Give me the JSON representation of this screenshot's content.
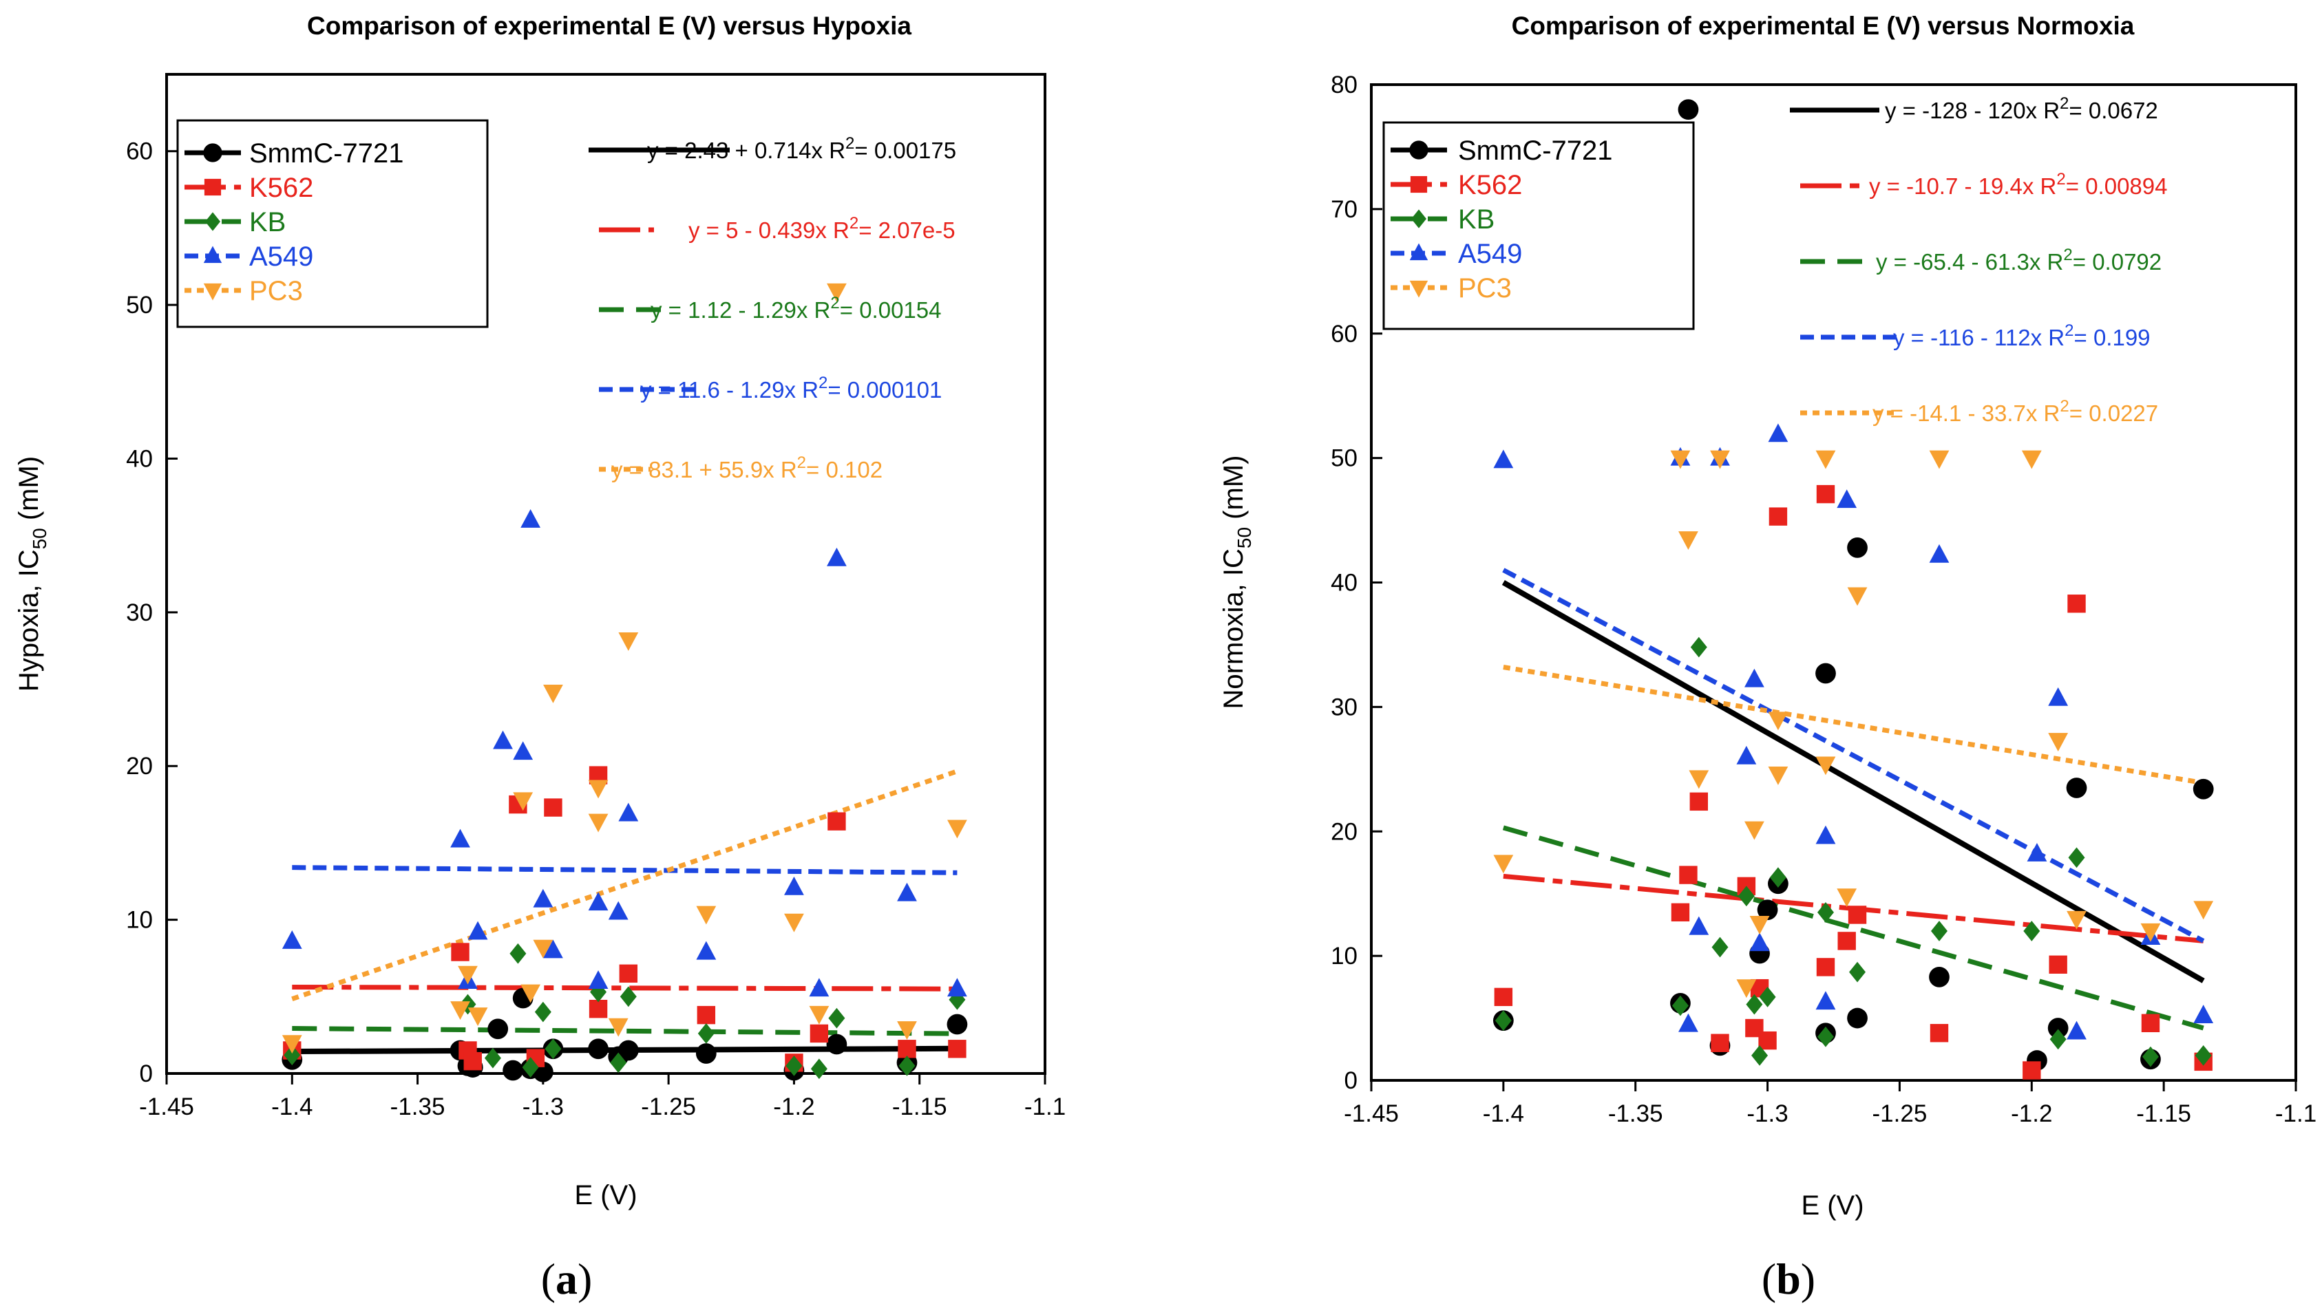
{
  "colors": {
    "SmmC-7721": "#000000",
    "K562": "#e8231c",
    "KB": "#1b7a1b",
    "A549": "#1c46e0",
    "PC3": "#f7a030"
  },
  "chart_data": [
    {
      "type": "scatter",
      "panel": "a",
      "panel_label": "a",
      "title": "Comparison of experimental E (V) versus Hypoxia",
      "xlabel": "E (V)",
      "ylabel": "Hypoxia, IC50 (mM)",
      "ylabel_main": "Hypoxia, IC",
      "ylabel_sub": "50",
      "ylabel_unit": " (mM)",
      "xlim": [
        -1.45,
        -1.1
      ],
      "ylim": [
        0,
        65
      ],
      "xticks": [
        -1.45,
        -1.4,
        -1.35,
        -1.3,
        -1.25,
        -1.2,
        -1.15,
        -1.1
      ],
      "xtick_labels": [
        "-1.45",
        "-1.4",
        "-1.35",
        "-1.3",
        "-1.25",
        "-1.2",
        "-1.15",
        "-1.1"
      ],
      "yticks": [
        0,
        10,
        20,
        30,
        40,
        50,
        60
      ],
      "ytick_labels": [
        "0",
        "10",
        "20",
        "30",
        "40",
        "50",
        "60"
      ],
      "legend": [
        "SmmC-7721",
        "K562",
        "KB",
        "A549",
        "PC3"
      ],
      "series": [
        {
          "name": "SmmC-7721",
          "marker": "circle",
          "dash": "solid",
          "fit": {
            "x": [
              -1.4,
              -1.135
            ],
            "y": [
              1.43,
              1.62
            ]
          },
          "equation": {
            "pre": "y = 2.43 + 0.714x   R",
            "sup": "2",
            "post": "= 0.00175"
          },
          "points": [
            [
              -1.4,
              0.9
            ],
            [
              -1.333,
              1.5
            ],
            [
              -1.33,
              0.5
            ],
            [
              -1.328,
              0.4
            ],
            [
              -1.318,
              2.9
            ],
            [
              -1.312,
              0.2
            ],
            [
              -1.308,
              4.9
            ],
            [
              -1.305,
              0.3
            ],
            [
              -1.3,
              0.1
            ],
            [
              -1.296,
              1.6
            ],
            [
              -1.278,
              1.6
            ],
            [
              -1.27,
              1.1
            ],
            [
              -1.266,
              1.5
            ],
            [
              -1.235,
              1.3
            ],
            [
              -1.2,
              0.2
            ],
            [
              -1.183,
              1.9
            ],
            [
              -1.155,
              0.7
            ],
            [
              -1.135,
              3.2
            ]
          ]
        },
        {
          "name": "K562",
          "marker": "square",
          "dash": "longdash",
          "fit": {
            "x": [
              -1.4,
              -1.135
            ],
            "y": [
              5.62,
              5.5
            ]
          },
          "equation": {
            "pre": "y = 5 - 0.439x   R",
            "sup": "2",
            "post": "= 2.07e-5"
          },
          "points": [
            [
              -1.4,
              1.5
            ],
            [
              -1.333,
              7.9
            ],
            [
              -1.33,
              1.5
            ],
            [
              -1.328,
              0.8
            ],
            [
              -1.31,
              17.5
            ],
            [
              -1.303,
              1.0
            ],
            [
              -1.296,
              17.3
            ],
            [
              -1.278,
              19.4
            ],
            [
              -1.278,
              4.2
            ],
            [
              -1.266,
              6.5
            ],
            [
              -1.235,
              3.8
            ],
            [
              -1.2,
              0.7
            ],
            [
              -1.19,
              2.6
            ],
            [
              -1.183,
              16.4
            ],
            [
              -1.155,
              1.6
            ],
            [
              -1.135,
              1.6
            ]
          ]
        },
        {
          "name": "KB",
          "marker": "diamond",
          "dash": "dash",
          "fit": {
            "x": [
              -1.4,
              -1.135
            ],
            "y": [
              2.93,
              2.59
            ]
          },
          "equation": {
            "pre": "y = 1.12 - 1.29x   R",
            "sup": "2",
            "post": "= 0.00154"
          },
          "points": [
            [
              -1.4,
              1.2
            ],
            [
              -1.33,
              4.5
            ],
            [
              -1.32,
              1.0
            ],
            [
              -1.31,
              7.8
            ],
            [
              -1.305,
              0.4
            ],
            [
              -1.3,
              4.0
            ],
            [
              -1.296,
              1.6
            ],
            [
              -1.278,
              5.3
            ],
            [
              -1.27,
              0.7
            ],
            [
              -1.266,
              5.0
            ],
            [
              -1.235,
              2.6
            ],
            [
              -1.2,
              0.5
            ],
            [
              -1.19,
              0.3
            ],
            [
              -1.183,
              3.6
            ],
            [
              -1.155,
              0.5
            ],
            [
              -1.135,
              4.8
            ]
          ]
        },
        {
          "name": "A549",
          "marker": "triangle-up",
          "dash": "shortdash",
          "fit": {
            "x": [
              -1.4,
              -1.135
            ],
            "y": [
              13.4,
              13.06
            ]
          },
          "equation": {
            "pre": "y = 11.6 - 1.29x   R",
            "sup": "2",
            "post": "= 0.000101"
          },
          "points": [
            [
              -1.4,
              8.6
            ],
            [
              -1.333,
              15.2
            ],
            [
              -1.33,
              6.0
            ],
            [
              -1.326,
              9.2
            ],
            [
              -1.316,
              21.6
            ],
            [
              -1.308,
              20.9
            ],
            [
              -1.305,
              36.0
            ],
            [
              -1.3,
              11.3
            ],
            [
              -1.296,
              8.0
            ],
            [
              -1.278,
              11.1
            ],
            [
              -1.278,
              6.0
            ],
            [
              -1.27,
              10.5
            ],
            [
              -1.266,
              16.9
            ],
            [
              -1.235,
              7.9
            ],
            [
              -1.2,
              12.1
            ],
            [
              -1.19,
              5.5
            ],
            [
              -1.183,
              33.5
            ],
            [
              -1.155,
              11.7
            ],
            [
              -1.135,
              5.5
            ]
          ]
        },
        {
          "name": "PC3",
          "marker": "triangle-down",
          "dash": "dot",
          "fit": {
            "x": [
              -1.4,
              -1.135
            ],
            "y": [
              4.85,
              19.66
            ]
          },
          "equation": {
            "pre": "y = 83.1 + 55.9x   R",
            "sup": "2",
            "post": "= 0.102"
          },
          "points": [
            [
              -1.4,
              2.0
            ],
            [
              -1.333,
              4.2
            ],
            [
              -1.33,
              6.5
            ],
            [
              -1.326,
              3.8
            ],
            [
              -1.308,
              17.8
            ],
            [
              -1.305,
              5.3
            ],
            [
              -1.3,
              8.2
            ],
            [
              -1.296,
              24.8
            ],
            [
              -1.278,
              18.6
            ],
            [
              -1.278,
              16.4
            ],
            [
              -1.27,
              3.1
            ],
            [
              -1.266,
              28.2
            ],
            [
              -1.235,
              10.4
            ],
            [
              -1.2,
              9.9
            ],
            [
              -1.19,
              3.9
            ],
            [
              -1.183,
              50.9
            ],
            [
              -1.155,
              2.9
            ],
            [
              -1.135,
              16.0
            ]
          ]
        }
      ]
    },
    {
      "type": "scatter",
      "panel": "b",
      "panel_label": "b",
      "title": "Comparison of experimental E (V) versus Normoxia",
      "xlabel": "E (V)",
      "ylabel": "Normoxia, IC50 (mM)",
      "ylabel_main": "Normoxia, IC",
      "ylabel_sub": "50",
      "ylabel_unit": " (mM)",
      "xlim": [
        -1.45,
        -1.1
      ],
      "ylim": [
        0,
        80
      ],
      "xticks": [
        -1.45,
        -1.4,
        -1.35,
        -1.3,
        -1.25,
        -1.2,
        -1.15,
        -1.1
      ],
      "xtick_labels": [
        "-1.45",
        "-1.4",
        "-1.35",
        "-1.3",
        "-1.25",
        "-1.2",
        "-1.15",
        "-1.1"
      ],
      "yticks": [
        0,
        10,
        20,
        30,
        40,
        50,
        60,
        70,
        80
      ],
      "ytick_labels": [
        "0",
        "10",
        "20",
        "30",
        "40",
        "50",
        "60",
        "70",
        "80"
      ],
      "legend": [
        "SmmC-7721",
        "K562",
        "KB",
        "A549",
        "PC3"
      ],
      "series": [
        {
          "name": "SmmC-7721",
          "marker": "circle",
          "dash": "solid",
          "fit": {
            "x": [
              -1.4,
              -1.135
            ],
            "y": [
              40.0,
              8.0
            ]
          },
          "equation": {
            "pre": "y = -128 - 120x   R",
            "sup": "2",
            "post": "= 0.0672"
          },
          "points": [
            [
              -1.4,
              4.8
            ],
            [
              -1.333,
              6.2
            ],
            [
              -1.33,
              78.0
            ],
            [
              -1.318,
              2.8
            ],
            [
              -1.303,
              10.2
            ],
            [
              -1.3,
              13.7
            ],
            [
              -1.296,
              15.8
            ],
            [
              -1.278,
              32.7
            ],
            [
              -1.278,
              3.8
            ],
            [
              -1.266,
              5.0
            ],
            [
              -1.266,
              42.8
            ],
            [
              -1.235,
              8.3
            ],
            [
              -1.198,
              1.6
            ],
            [
              -1.19,
              4.2
            ],
            [
              -1.183,
              23.5
            ],
            [
              -1.155,
              1.7
            ],
            [
              -1.135,
              23.4
            ]
          ]
        },
        {
          "name": "K562",
          "marker": "square",
          "dash": "longdash",
          "fit": {
            "x": [
              -1.4,
              -1.135
            ],
            "y": [
              16.4,
              11.2
            ]
          },
          "equation": {
            "pre": "y = -10.7 - 19.4x   R",
            "sup": "2",
            "post": "= 0.00894"
          },
          "points": [
            [
              -1.4,
              6.7
            ],
            [
              -1.333,
              13.5
            ],
            [
              -1.33,
              16.5
            ],
            [
              -1.326,
              22.4
            ],
            [
              -1.318,
              3.0
            ],
            [
              -1.308,
              15.6
            ],
            [
              -1.305,
              4.2
            ],
            [
              -1.303,
              7.4
            ],
            [
              -1.3,
              3.2
            ],
            [
              -1.296,
              45.3
            ],
            [
              -1.278,
              47.1
            ],
            [
              -1.278,
              9.1
            ],
            [
              -1.27,
              11.2
            ],
            [
              -1.266,
              13.3
            ],
            [
              -1.235,
              3.8
            ],
            [
              -1.2,
              0.8
            ],
            [
              -1.19,
              9.3
            ],
            [
              -1.183,
              38.3
            ],
            [
              -1.155,
              4.6
            ],
            [
              -1.135,
              1.5
            ]
          ]
        },
        {
          "name": "KB",
          "marker": "diamond",
          "dash": "dash",
          "fit": {
            "x": [
              -1.4,
              -1.135
            ],
            "y": [
              20.3,
              4.2
            ]
          },
          "equation": {
            "pre": "y = -65.4 - 61.3x   R",
            "sup": "2",
            "post": "= 0.0792"
          },
          "points": [
            [
              -1.4,
              4.8
            ],
            [
              -1.333,
              6.0
            ],
            [
              -1.326,
              34.8
            ],
            [
              -1.318,
              10.7
            ],
            [
              -1.308,
              14.8
            ],
            [
              -1.305,
              6.1
            ],
            [
              -1.303,
              2.0
            ],
            [
              -1.3,
              6.7
            ],
            [
              -1.296,
              16.3
            ],
            [
              -1.278,
              3.5
            ],
            [
              -1.278,
              13.5
            ],
            [
              -1.266,
              8.7
            ],
            [
              -1.235,
              12.0
            ],
            [
              -1.2,
              12.0
            ],
            [
              -1.19,
              3.3
            ],
            [
              -1.183,
              17.9
            ],
            [
              -1.155,
              1.9
            ],
            [
              -1.135,
              2.0
            ]
          ]
        },
        {
          "name": "A549",
          "marker": "triangle-up",
          "dash": "shortdash",
          "fit": {
            "x": [
              -1.4,
              -1.135
            ],
            "y": [
              41.0,
              11.2
            ]
          },
          "equation": {
            "pre": "y = -116 - 112x   R",
            "sup": "2",
            "post": "= 0.199"
          },
          "points": [
            [
              -1.4,
              49.8
            ],
            [
              -1.333,
              50.0
            ],
            [
              -1.33,
              4.5
            ],
            [
              -1.326,
              12.3
            ],
            [
              -1.318,
              50.0
            ],
            [
              -1.308,
              26.0
            ],
            [
              -1.305,
              32.2
            ],
            [
              -1.303,
              11.0
            ],
            [
              -1.296,
              51.9
            ],
            [
              -1.278,
              19.6
            ],
            [
              -1.278,
              6.3
            ],
            [
              -1.27,
              46.6
            ],
            [
              -1.235,
              42.2
            ],
            [
              -1.198,
              18.2
            ],
            [
              -1.19,
              30.7
            ],
            [
              -1.183,
              3.9
            ],
            [
              -1.155,
              11.5
            ],
            [
              -1.135,
              5.2
            ]
          ]
        },
        {
          "name": "PC3",
          "marker": "triangle-down",
          "dash": "dot",
          "fit": {
            "x": [
              -1.4,
              -1.135
            ],
            "y": [
              33.2,
              23.9
            ]
          },
          "equation": {
            "pre": "y = -14.1 - 33.7x   R",
            "sup": "2",
            "post": "= 0.0227"
          },
          "points": [
            [
              -1.4,
              17.5
            ],
            [
              -1.333,
              50.0
            ],
            [
              -1.33,
              43.5
            ],
            [
              -1.326,
              24.3
            ],
            [
              -1.318,
              50.0
            ],
            [
              -1.308,
              7.5
            ],
            [
              -1.305,
              20.2
            ],
            [
              -1.303,
              12.6
            ],
            [
              -1.296,
              24.6
            ],
            [
              -1.296,
              29.0
            ],
            [
              -1.278,
              25.4
            ],
            [
              -1.278,
              50.0
            ],
            [
              -1.27,
              14.8
            ],
            [
              -1.266,
              39.0
            ],
            [
              -1.235,
              50.0
            ],
            [
              -1.2,
              50.0
            ],
            [
              -1.19,
              27.3
            ],
            [
              -1.183,
              13.0
            ],
            [
              -1.155,
              12.0
            ],
            [
              -1.135,
              13.8
            ]
          ]
        }
      ]
    }
  ]
}
